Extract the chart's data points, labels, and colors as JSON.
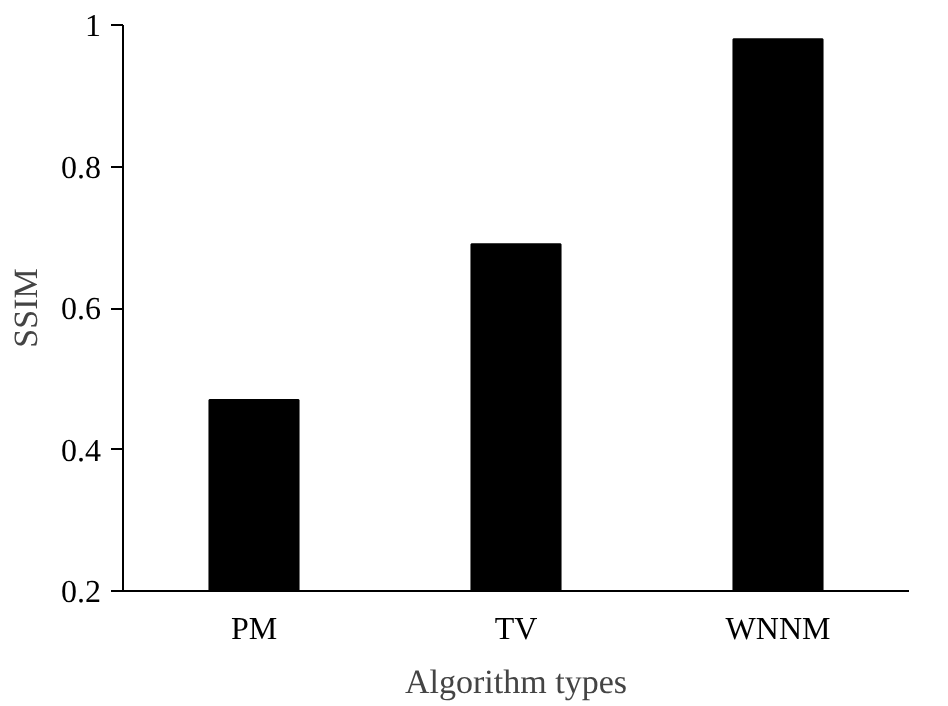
{
  "chart_data": {
    "type": "bar",
    "xlabel": "Algorithm types",
    "ylabel": "SSIM",
    "categories": [
      "PM",
      "TV",
      "WNNM"
    ],
    "values": [
      0.47,
      0.69,
      0.98
    ],
    "color": "#000000",
    "ylim": [
      0.2,
      1
    ],
    "yticks": [
      0.2,
      0.4,
      0.6,
      0.8,
      1
    ],
    "grid": false
  }
}
